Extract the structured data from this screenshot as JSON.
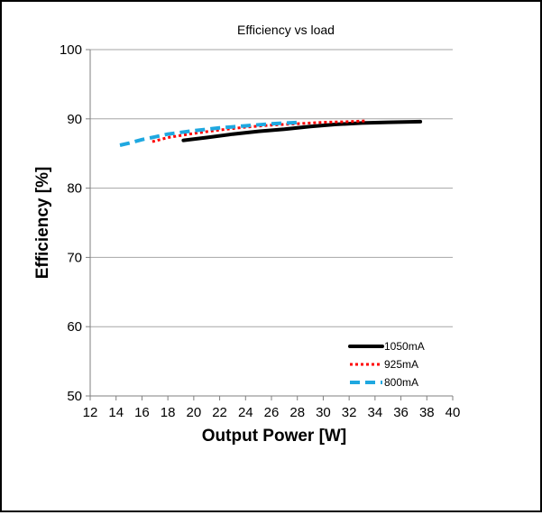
{
  "chart_data": {
    "type": "line",
    "title": "Efficiency vs load",
    "xlabel": "Output Power [W]",
    "ylabel": "Efficiency [%]",
    "xlim": [
      12,
      40
    ],
    "ylim": [
      50,
      100
    ],
    "x_ticks": [
      "12",
      "14",
      "16",
      "18",
      "20",
      "22",
      "24",
      "26",
      "28",
      "30",
      "32",
      "34",
      "36",
      "38",
      "40"
    ],
    "y_ticks": [
      "50",
      "60",
      "70",
      "80",
      "90",
      "100"
    ],
    "grid": "horizontal",
    "legend_position": "bottom-right",
    "series": [
      {
        "name": "1050mA",
        "color": "#000000",
        "style": "solid",
        "x": [
          19.2,
          21,
          23,
          25,
          27,
          29,
          31,
          33,
          35,
          37.5
        ],
        "y": [
          86.9,
          87.3,
          87.8,
          88.2,
          88.5,
          88.9,
          89.2,
          89.4,
          89.5,
          89.6
        ]
      },
      {
        "name": "925mA",
        "color": "#ff0000",
        "style": "dotted",
        "x": [
          16.8,
          18,
          20,
          22,
          24,
          26,
          28,
          30,
          32,
          33.2
        ],
        "y": [
          86.7,
          87.3,
          87.9,
          88.4,
          88.8,
          89.1,
          89.3,
          89.5,
          89.6,
          89.7
        ]
      },
      {
        "name": "800mA",
        "color": "#1fa8e0",
        "style": "dashed",
        "x": [
          14.3,
          15,
          16,
          17,
          18,
          20,
          22,
          24,
          26,
          28.3
        ],
        "y": [
          86.2,
          86.5,
          87.0,
          87.4,
          87.8,
          88.3,
          88.7,
          89.0,
          89.3,
          89.5
        ]
      }
    ]
  }
}
